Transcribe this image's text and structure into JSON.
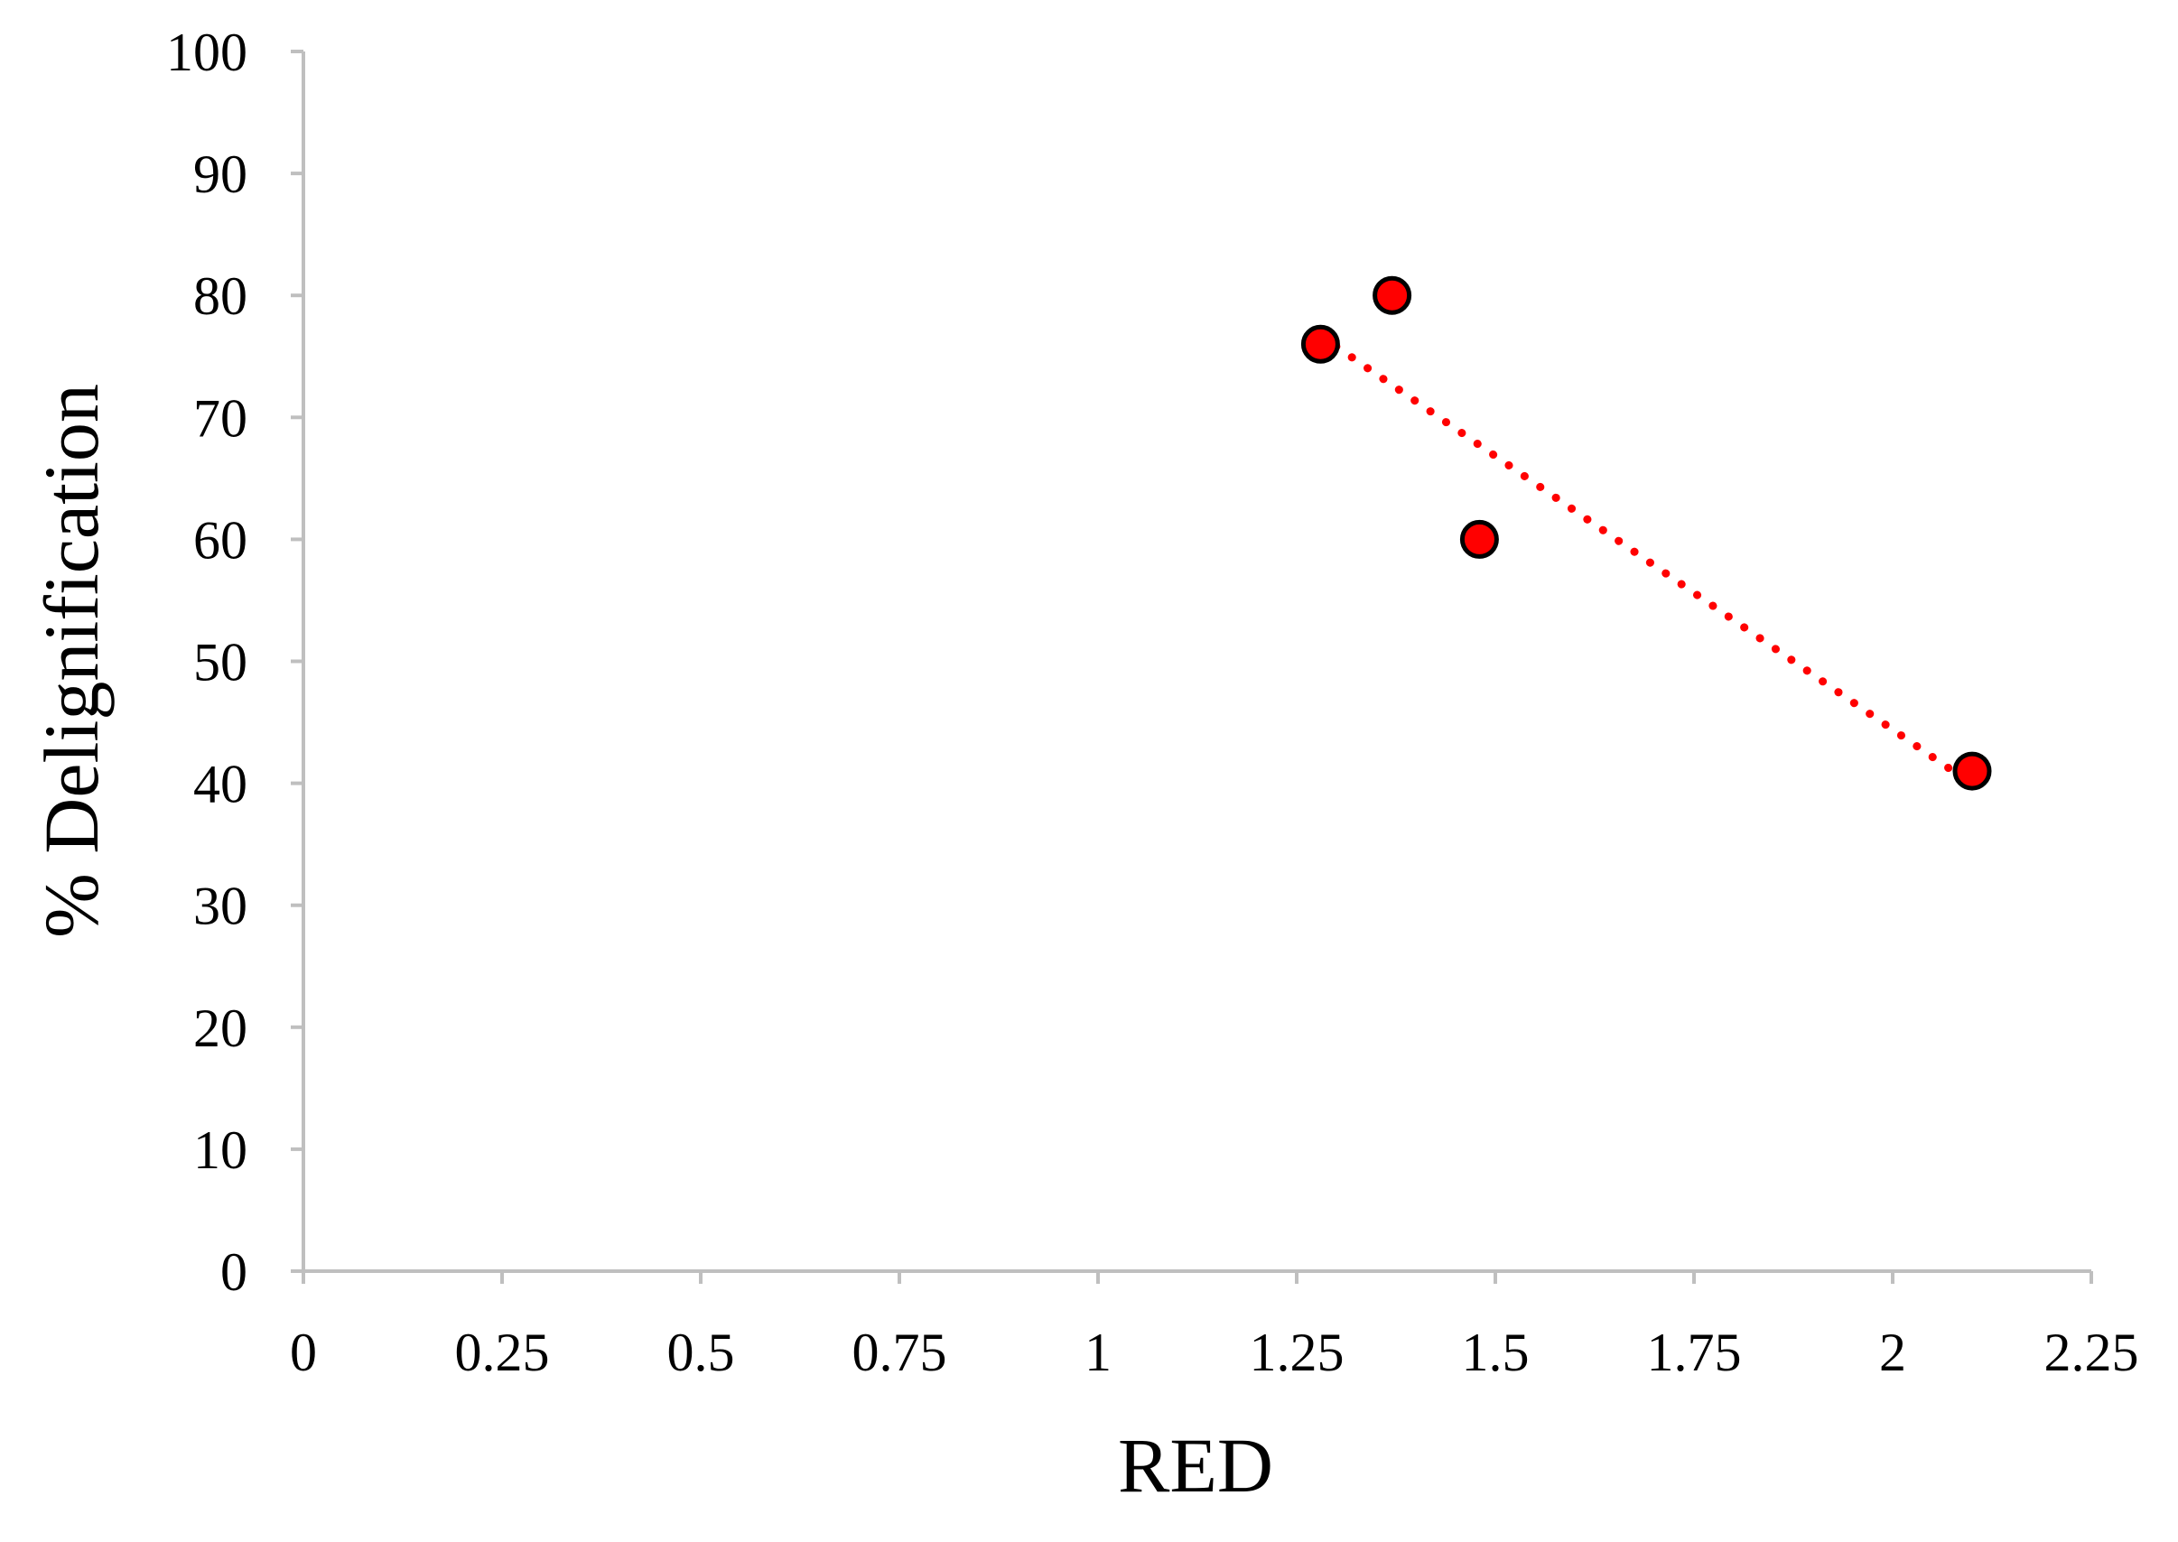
{
  "chart_data": {
    "type": "scatter",
    "title": "",
    "xlabel": "RED",
    "ylabel": "% Delignification",
    "xlim": [
      0,
      2.25
    ],
    "ylim": [
      0,
      100
    ],
    "x_ticks": [
      0,
      0.25,
      0.5,
      0.75,
      1,
      1.25,
      1.5,
      1.75,
      2,
      2.25
    ],
    "x_tick_labels": [
      "0",
      "0.25",
      "0.5",
      "0.75",
      "1",
      "1.25",
      "1.5",
      "1.75",
      "2",
      "2.25"
    ],
    "y_ticks": [
      0,
      10,
      20,
      30,
      40,
      50,
      60,
      70,
      80,
      90,
      100
    ],
    "y_tick_labels": [
      "0",
      "10",
      "20",
      "30",
      "40",
      "50",
      "60",
      "70",
      "80",
      "90",
      "100"
    ],
    "grid": false,
    "legend": "none",
    "series": [
      {
        "points": [
          {
            "x": 1.28,
            "y": 76
          },
          {
            "x": 1.37,
            "y": 80
          },
          {
            "x": 1.48,
            "y": 60
          },
          {
            "x": 2.1,
            "y": 41
          }
        ],
        "marker_color": "#ff0000",
        "marker_edge_color": "#000000"
      }
    ],
    "trendline": {
      "type": "linear",
      "style": "dotted",
      "color": "#ff0000",
      "x_range": [
        1.28,
        2.1
      ]
    },
    "axis_color": "#bfbfbf"
  }
}
